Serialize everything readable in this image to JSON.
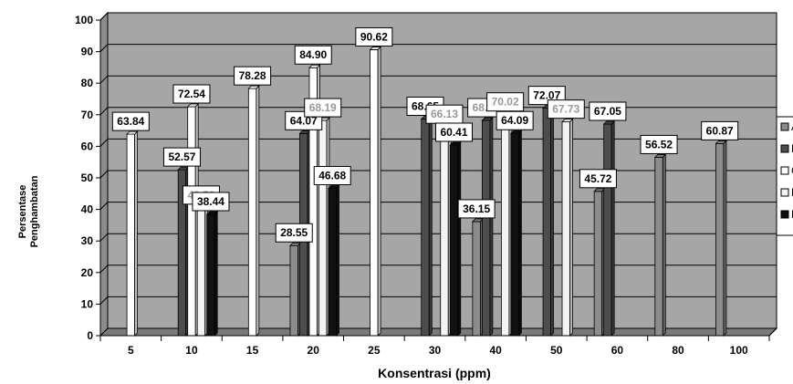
{
  "chart_data": {
    "type": "bar",
    "title": "",
    "xlabel": "Konsentrasi (ppm)",
    "ylabel_lines": [
      "Persentase",
      "Penghambatan"
    ],
    "ylim": [
      0,
      100
    ],
    "yticks": [
      0,
      10,
      20,
      30,
      40,
      50,
      60,
      70,
      80,
      90,
      100
    ],
    "categories": [
      "5",
      "10",
      "15",
      "20",
      "25",
      "30",
      "40",
      "50",
      "60",
      "80",
      "100"
    ],
    "series": [
      {
        "name": "A",
        "color": "#8c8c8c",
        "values": [
          null,
          null,
          null,
          28.55,
          null,
          null,
          36.15,
          null,
          45.72,
          56.52,
          60.87
        ]
      },
      {
        "name": "B",
        "color": "#4d4d4d",
        "values": [
          null,
          52.57,
          null,
          64.07,
          null,
          68.65,
          68.19,
          72.07,
          67.05,
          null,
          null
        ]
      },
      {
        "name": "C",
        "color": "#ffffff",
        "values": [
          63.84,
          72.54,
          78.28,
          84.9,
          90.62,
          null,
          null,
          null,
          null,
          null,
          null
        ]
      },
      {
        "name": "D",
        "color": "#f4f4f4",
        "values": [
          null,
          40.5,
          null,
          68.19,
          null,
          66.13,
          70.02,
          67.73,
          null,
          null,
          null
        ]
      },
      {
        "name": "E",
        "color": "#111111",
        "values": [
          null,
          38.44,
          null,
          46.68,
          null,
          60.41,
          64.09,
          null,
          null,
          null,
          null
        ]
      }
    ],
    "grey_labels": [
      "40.50",
      "68.19",
      "66.13",
      "70.02",
      "67.73"
    ],
    "grid": true,
    "legend_position": "right"
  }
}
